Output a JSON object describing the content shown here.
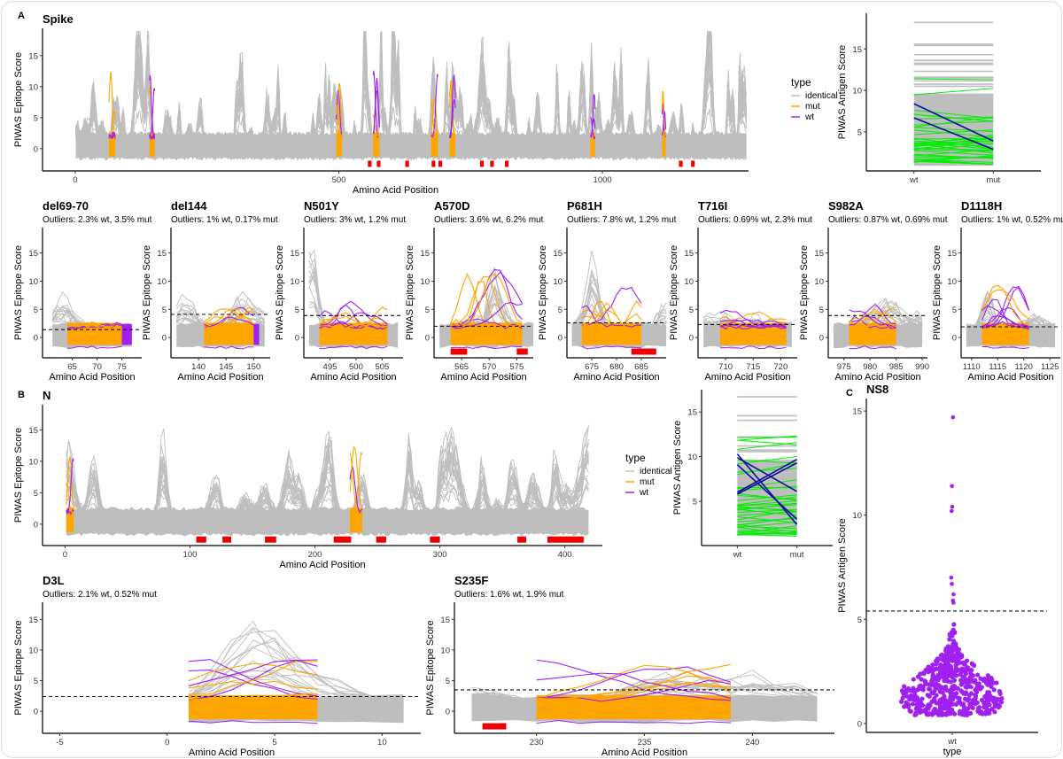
{
  "panel_labels": [
    "A",
    "B",
    "C"
  ],
  "legend": {
    "title": "type",
    "items": [
      {
        "label": "identical",
        "color": "#bebebe"
      },
      {
        "label": "mut",
        "color": "#FFA500"
      },
      {
        "label": "wt",
        "color": "#A020F0"
      }
    ]
  },
  "colors": {
    "identical": "#bebebe",
    "mut": "#FFA500",
    "wt": "#A020F0",
    "epitope": "#ee0000",
    "antigen_changed": "#00ee00",
    "antigen_highlight": "#0a0aa0"
  },
  "chart_data": [
    {
      "type": "line",
      "title": "Spike",
      "xlabel": "Amino Acid Position",
      "ylabel": "PIWAS Epitope Score",
      "xlim": [
        -62,
        1277
      ],
      "ylim": [
        -3.6,
        19.4
      ],
      "xticks": [
        0,
        500,
        1000
      ],
      "yticks": [
        0,
        5,
        10,
        15
      ],
      "sequence_range": [
        1,
        1273
      ],
      "mutation_regions": [
        [
          64,
          76
        ],
        [
          141,
          151
        ],
        [
          495,
          506
        ],
        [
          565,
          577
        ],
        [
          675,
          688
        ],
        [
          710,
          721
        ],
        [
          977,
          986
        ],
        [
          1113,
          1120
        ]
      ],
      "epitopes": [
        [
          555,
          562
        ],
        [
          572,
          579
        ],
        [
          626,
          633
        ],
        [
          676,
          683
        ],
        [
          689,
          696
        ],
        [
          768,
          775
        ],
        [
          787,
          794
        ],
        [
          815,
          822
        ],
        [
          1145,
          1152
        ],
        [
          1168,
          1175
        ]
      ],
      "legend_position": "right"
    },
    {
      "type": "line",
      "subtype": "paired",
      "ylabel": "PIWAS Antigen Score",
      "categories": [
        "wt",
        "mut"
      ],
      "ylim": [
        0.3,
        19.3
      ],
      "yticks": [
        5,
        10,
        15
      ],
      "identical_max": 18.2,
      "highlighted_pairs": [
        [
          8.4,
          3.9
        ],
        [
          6.7,
          2.9
        ]
      ]
    },
    {
      "type": "line",
      "title": "del69-70",
      "subtitle": "Outliers: 2.3% wt, 3.5% mut",
      "xlabel": "Amino Acid Position",
      "ylabel": "PIWAS Epitope Score",
      "xlim": [
        59,
        79
      ],
      "ylim": [
        -3.6,
        19.5
      ],
      "xticks": [
        65,
        70,
        75
      ],
      "yticks": [
        0,
        5,
        10,
        15
      ],
      "sequence_range": [
        61,
        77
      ],
      "mutation_regions": [
        [
          64,
          75
        ]
      ],
      "wt_block": [
        75,
        77
      ],
      "threshold": 1.4,
      "epitopes": []
    },
    {
      "type": "line",
      "title": "del144",
      "subtitle": "Outliers: 1% wt, 0.17% mut",
      "xlabel": "Amino Acid Position",
      "ylabel": "PIWAS Epitope Score",
      "xlim": [
        135,
        153
      ],
      "ylim": [
        -3.6,
        19.5
      ],
      "xticks": [
        140,
        145,
        150
      ],
      "yticks": [
        0,
        5,
        10,
        15
      ],
      "sequence_range": [
        136,
        152
      ],
      "mutation_regions": [
        [
          141,
          150
        ]
      ],
      "wt_block": [
        150,
        151
      ],
      "threshold": 4.1,
      "epitopes": []
    },
    {
      "type": "line",
      "title": "N501Y",
      "subtitle": "Outliers: 3% wt, 1.2% mut",
      "xlabel": "Amino Acid Position",
      "ylabel": "PIWAS Epitope Score",
      "xlim": [
        490,
        509
      ],
      "ylim": [
        -3.6,
        19.5
      ],
      "xticks": [
        495,
        500,
        505
      ],
      "yticks": [
        0,
        5,
        10,
        15
      ],
      "sequence_range": [
        491,
        508
      ],
      "mutation_regions": [
        [
          493,
          506
        ]
      ],
      "threshold": 3.9,
      "epitopes": []
    },
    {
      "type": "line",
      "title": "A570D",
      "subtitle": "Outliers: 3.6% wt, 6.2% mut",
      "xlabel": "Amino Acid Position",
      "ylabel": "PIWAS Epitope Score",
      "xlim": [
        560,
        578
      ],
      "ylim": [
        -3.6,
        19.5
      ],
      "xticks": [
        565,
        570,
        575
      ],
      "yticks": [
        0,
        5,
        10,
        15
      ],
      "sequence_range": [
        561,
        578
      ],
      "mutation_regions": [
        [
          563,
          576
        ]
      ],
      "threshold": 2.0,
      "epitopes": [
        [
          563,
          566
        ],
        [
          575,
          577
        ]
      ]
    },
    {
      "type": "line",
      "title": "P681H",
      "subtitle": "Outliers: 7.8% wt, 1.2% mut",
      "xlabel": "Amino Acid Position",
      "ylabel": "PIWAS Epitope Score",
      "xlim": [
        670,
        690
      ],
      "ylim": [
        -3.6,
        19.5
      ],
      "xticks": [
        675,
        680,
        685
      ],
      "yticks": [
        0,
        5,
        10,
        15
      ],
      "sequence_range": [
        671,
        690
      ],
      "mutation_regions": [
        [
          673,
          685
        ]
      ],
      "threshold": 2.6,
      "epitopes": [
        [
          683,
          688
        ]
      ]
    },
    {
      "type": "line",
      "title": "T716I",
      "subtitle": "Outliers: 0.69% wt, 2.3% mut",
      "xlabel": "Amino Acid Position",
      "ylabel": "PIWAS Epitope Score",
      "xlim": [
        705,
        723
      ],
      "ylim": [
        -3.6,
        19.5
      ],
      "xticks": [
        710,
        715,
        720
      ],
      "yticks": [
        0,
        5,
        10,
        15
      ],
      "sequence_range": [
        706,
        722
      ],
      "mutation_regions": [
        [
          709,
          721
        ]
      ],
      "threshold": 2.3,
      "epitopes": []
    },
    {
      "type": "line",
      "title": "S982A",
      "subtitle": "Outliers: 0.87% wt, 0.69% mut",
      "xlabel": "Amino Acid Position",
      "ylabel": "PIWAS Epitope Score",
      "xlim": [
        972,
        991
      ],
      "ylim": [
        -3.6,
        19.5
      ],
      "xticks": [
        975,
        980,
        985,
        990
      ],
      "yticks": [
        0,
        5,
        10,
        15
      ],
      "sequence_range": [
        973,
        990
      ],
      "mutation_regions": [
        [
          976,
          985
        ]
      ],
      "threshold": 3.9,
      "epitopes": []
    },
    {
      "type": "line",
      "title": "D1118H",
      "subtitle": "Outliers: 1% wt, 0.52% mut",
      "xlabel": "Amino Acid Position",
      "ylabel": "PIWAS Epitope Score",
      "xlim": [
        1108,
        1127
      ],
      "ylim": [
        -3.6,
        19.5
      ],
      "xticks": [
        1110,
        1115,
        1120,
        1125
      ],
      "yticks": [
        0,
        5,
        10,
        15
      ],
      "sequence_range": [
        1109,
        1126
      ],
      "mutation_regions": [
        [
          1112,
          1121
        ]
      ],
      "threshold": 1.9,
      "epitopes": []
    },
    {
      "type": "line",
      "title": "N",
      "xlabel": "Amino Acid Position",
      "ylabel": "PIWAS Epitope Score",
      "xlim": [
        -18,
        430
      ],
      "ylim": [
        -3.4,
        19
      ],
      "xticks": [
        0,
        100,
        200,
        300,
        400
      ],
      "yticks": [
        0,
        5,
        10,
        15
      ],
      "sequence_range": [
        1,
        419
      ],
      "mutation_regions": [
        [
          1,
          7
        ],
        [
          228,
          238
        ]
      ],
      "epitopes": [
        [
          105,
          113
        ],
        [
          126,
          133
        ],
        [
          160,
          169
        ],
        [
          215,
          229
        ],
        [
          249,
          257
        ],
        [
          292,
          300
        ],
        [
          362,
          369
        ],
        [
          386,
          415
        ]
      ],
      "legend_position": "right"
    },
    {
      "type": "line",
      "subtype": "paired",
      "ylabel": "PIWAS Antigen Score",
      "categories": [
        "wt",
        "mut"
      ],
      "ylim": [
        0.05,
        17.5
      ],
      "yticks": [
        5,
        10,
        15
      ],
      "identical_max": 16.7,
      "highlighted_pairs": [
        [
          10.3,
          2.4
        ],
        [
          9.9,
          6.1
        ],
        [
          9.1,
          3.0
        ],
        [
          6.0,
          9.7
        ],
        [
          5.8,
          9.3
        ]
      ]
    },
    {
      "type": "line",
      "title": "D3L",
      "subtitle": "Outliers: 2.1% wt, 0.52% mut",
      "xlabel": "Amino Acid Position",
      "ylabel": "PIWAS Epitope Score",
      "xlim": [
        -5.8,
        11.8
      ],
      "ylim": [
        -3.6,
        17.8
      ],
      "xticks": [
        -5,
        0,
        5,
        10
      ],
      "yticks": [
        0,
        5,
        10,
        15
      ],
      "sequence_range": [
        1,
        11
      ],
      "mutation_regions": [
        [
          1,
          7
        ]
      ],
      "threshold": 2.4,
      "epitopes": []
    },
    {
      "type": "line",
      "title": "S235F",
      "subtitle": "Outliers: 1.6% wt, 1.9% mut",
      "xlabel": "Amino Acid Position",
      "ylabel": "PIWAS Epitope Score",
      "xlim": [
        226.2,
        243.8
      ],
      "ylim": [
        -3.6,
        17.8
      ],
      "xticks": [
        230,
        235,
        240
      ],
      "yticks": [
        0,
        5,
        10,
        15
      ],
      "sequence_range": [
        227,
        243
      ],
      "mutation_regions": [
        [
          230,
          239
        ]
      ],
      "threshold": 3.5,
      "epitopes": [
        [
          227.5,
          228.6
        ]
      ]
    },
    {
      "type": "scatter",
      "title": "NS8",
      "xlabel": "type",
      "ylabel": "PIWAS Antigen Score",
      "categories": [
        "wt"
      ],
      "ylim": [
        -0.43,
        15.6
      ],
      "yticks": [
        0,
        5,
        10,
        15
      ],
      "threshold": 5.4,
      "outliers": [
        14.7,
        11.4,
        10.4,
        10.2,
        7.0,
        6.7,
        6.2,
        5.9,
        5.8
      ]
    }
  ]
}
